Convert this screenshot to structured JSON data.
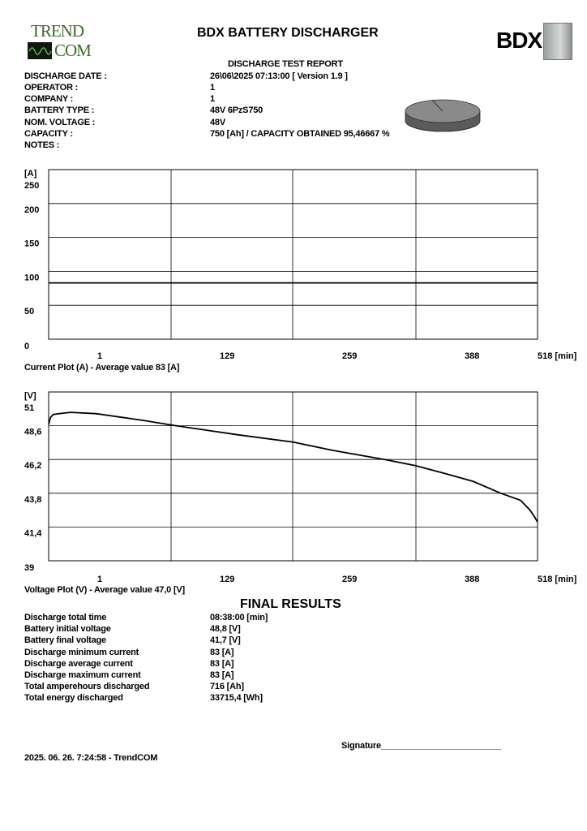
{
  "header": {
    "title": "BDX BATTERY DISCHARGER",
    "subtitle": "DISCHARGE TEST REPORT",
    "logo_left": {
      "line1": "TREND",
      "line2": "COM"
    },
    "logo_right": "BDX"
  },
  "info": [
    {
      "label": "DISCHARGE DATE :",
      "value": "26\\06\\2025 07:13:00 [ Version 1.9 ]"
    },
    {
      "label": "OPERATOR :",
      "value": "1"
    },
    {
      "label": "COMPANY :",
      "value": "1"
    },
    {
      "label": "BATTERY TYPE :",
      "value": "48V 6PzS750"
    },
    {
      "label": "NOM. VOLTAGE :",
      "value": "48V"
    },
    {
      "label": "CAPACITY :",
      "value": "750 [Ah] / CAPACITY OBTAINED 95,46667 %"
    },
    {
      "label": "NOTES :",
      "value": ""
    }
  ],
  "capacity_pie": {
    "fraction_obtained": 0.9546667,
    "color": "#8a8a8a"
  },
  "chart_data": [
    {
      "type": "line",
      "title": "Current Plot (A) - Average value 83 [A]",
      "ylabel": "[A]",
      "xlabel": "[min]",
      "ylim": [
        0,
        250
      ],
      "xlim": [
        0,
        518
      ],
      "yticks": [
        "0",
        "50",
        "100",
        "150",
        "200",
        "250"
      ],
      "xticks": [
        "1",
        "129",
        "259",
        "388",
        "518 [min]"
      ],
      "grid": true,
      "series": [
        {
          "x": [
            0,
            518
          ],
          "y": [
            83,
            83
          ]
        }
      ]
    },
    {
      "type": "line",
      "title": "Voltage Plot (V) - Average value 47,0 [V]",
      "ylabel": "[V]",
      "xlabel": "[min]",
      "ylim": [
        39,
        51
      ],
      "xlim": [
        0,
        518
      ],
      "yticks": [
        "39",
        "41,4",
        "43,8",
        "46,2",
        "48,6",
        "51"
      ],
      "xticks": [
        "1",
        "129",
        "259",
        "388",
        "518 [min]"
      ],
      "grid": true,
      "series": [
        {
          "x": [
            0,
            2,
            5,
            10,
            23,
            50,
            100,
            135,
            200,
            259,
            300,
            356,
            389,
            420,
            450,
            479,
            500,
            510,
            515,
            518
          ],
          "y": [
            48.7,
            49.2,
            49.4,
            49.45,
            49.55,
            49.46,
            48.98,
            48.6,
            47.96,
            47.44,
            46.86,
            46.2,
            45.76,
            45.2,
            44.64,
            43.8,
            43.3,
            42.6,
            42.1,
            41.75
          ]
        }
      ]
    }
  ],
  "final_results": {
    "heading": "FINAL RESULTS",
    "rows": [
      {
        "label": "Discharge total time",
        "value": "08:38:00 [min]"
      },
      {
        "label": "Battery initial voltage",
        "value": "48,8 [V]"
      },
      {
        "label": "Battery final voltage",
        "value": "41,7 [V]"
      },
      {
        "label": "Discharge minimum current",
        "value": "83 [A]"
      },
      {
        "label": "Discharge average current",
        "value": "83 [A]"
      },
      {
        "label": "Discharge maximum current",
        "value": "83 [A]"
      },
      {
        "label": "Total amperehours discharged",
        "value": "716 [Ah]"
      },
      {
        "label": "Total energy discharged",
        "value": "33715,4 [Wh]"
      }
    ]
  },
  "signature_label": "Signature_________________________",
  "footer": "2025. 06. 26. 7:24:58 - TrendCOM"
}
